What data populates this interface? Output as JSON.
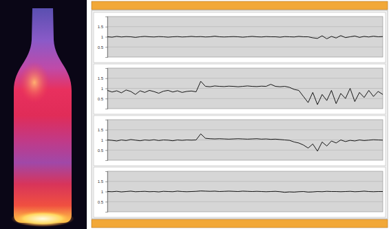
{
  "chart_data": [
    {
      "type": "line",
      "color": "#000000",
      "grid": true,
      "tick_labels": "y",
      "xlim": [
        0,
        59
      ],
      "ylim": [
        0,
        2
      ],
      "yticks": [
        0.5,
        1,
        1.5
      ],
      "x": [
        0,
        1,
        2,
        3,
        4,
        5,
        6,
        7,
        8,
        9,
        10,
        11,
        12,
        13,
        14,
        15,
        16,
        17,
        18,
        19,
        20,
        21,
        22,
        23,
        24,
        25,
        26,
        27,
        28,
        29,
        30,
        31,
        32,
        33,
        34,
        35,
        36,
        37,
        38,
        39,
        40,
        41,
        42,
        43,
        44,
        45,
        46,
        47,
        48,
        49,
        50,
        51,
        52,
        53,
        54,
        55,
        56,
        57,
        58,
        59
      ],
      "values": [
        1.0,
        0.98,
        1.02,
        0.99,
        1.01,
        1.0,
        0.97,
        1.0,
        1.02,
        1.0,
        0.99,
        1.01,
        1.0,
        0.98,
        1.0,
        1.01,
        0.99,
        1.0,
        1.02,
        1.0,
        1.01,
        0.99,
        1.0,
        1.03,
        1.0,
        0.99,
        1.0,
        1.01,
        1.0,
        0.98,
        1.0,
        1.02,
        1.0,
        0.99,
        1.01,
        1.0,
        1.0,
        0.98,
        1.01,
        1.0,
        0.99,
        1.02,
        1.0,
        1.0,
        0.95,
        0.92,
        1.05,
        0.9,
        1.02,
        0.94,
        1.06,
        0.96,
        1.0,
        1.04,
        0.97,
        1.02,
        0.99,
        1.03,
        1.0,
        1.01
      ]
    },
    {
      "type": "line",
      "color": "#000000",
      "grid": true,
      "tick_labels": "y",
      "xlim": [
        0,
        59
      ],
      "ylim": [
        0,
        2
      ],
      "yticks": [
        0.5,
        1,
        1.5
      ],
      "x": [
        0,
        1,
        2,
        3,
        4,
        5,
        6,
        7,
        8,
        9,
        10,
        11,
        12,
        13,
        14,
        15,
        16,
        17,
        18,
        19,
        20,
        21,
        22,
        23,
        24,
        25,
        26,
        27,
        28,
        29,
        30,
        31,
        32,
        33,
        34,
        35,
        36,
        37,
        38,
        39,
        40,
        41,
        42,
        43,
        44,
        45,
        46,
        47,
        48,
        49,
        50,
        51,
        52,
        53,
        54,
        55,
        56,
        57,
        58,
        59
      ],
      "values": [
        0.9,
        0.82,
        0.88,
        0.78,
        0.92,
        0.85,
        0.7,
        0.88,
        0.8,
        0.9,
        0.84,
        0.76,
        0.86,
        0.9,
        0.82,
        0.88,
        0.8,
        0.85,
        0.87,
        0.83,
        1.35,
        1.1,
        1.08,
        1.12,
        1.1,
        1.09,
        1.11,
        1.1,
        1.08,
        1.1,
        1.12,
        1.1,
        1.09,
        1.11,
        1.1,
        1.2,
        1.1,
        1.08,
        1.1,
        1.05,
        0.95,
        0.9,
        0.6,
        0.3,
        0.8,
        0.2,
        0.7,
        0.4,
        0.9,
        0.25,
        0.75,
        0.5,
        1.0,
        0.35,
        0.8,
        0.55,
        0.9,
        0.6,
        0.85,
        0.7
      ]
    },
    {
      "type": "line",
      "color": "#000000",
      "grid": true,
      "tick_labels": "y",
      "xlim": [
        0,
        59
      ],
      "ylim": [
        0,
        2
      ],
      "yticks": [
        0.5,
        1,
        1.5
      ],
      "x": [
        0,
        1,
        2,
        3,
        4,
        5,
        6,
        7,
        8,
        9,
        10,
        11,
        12,
        13,
        14,
        15,
        16,
        17,
        18,
        19,
        20,
        21,
        22,
        23,
        24,
        25,
        26,
        27,
        28,
        29,
        30,
        31,
        32,
        33,
        34,
        35,
        36,
        37,
        38,
        39,
        40,
        41,
        42,
        43,
        44,
        45,
        46,
        47,
        48,
        49,
        50,
        51,
        52,
        53,
        54,
        55,
        56,
        57,
        58,
        59
      ],
      "values": [
        1.0,
        0.98,
        0.95,
        1.0,
        0.97,
        1.02,
        0.99,
        0.96,
        1.0,
        0.98,
        1.01,
        0.97,
        1.0,
        0.99,
        0.96,
        1.0,
        0.98,
        1.0,
        0.99,
        1.0,
        1.3,
        1.08,
        1.06,
        1.05,
        1.06,
        1.05,
        1.04,
        1.05,
        1.06,
        1.05,
        1.04,
        1.05,
        1.06,
        1.04,
        1.05,
        1.03,
        1.04,
        1.02,
        1.0,
        0.98,
        0.9,
        0.85,
        0.75,
        0.6,
        0.8,
        0.45,
        0.9,
        0.7,
        0.95,
        0.85,
        1.0,
        0.92,
        0.98,
        0.95,
        1.0,
        0.97,
        0.99,
        1.01,
        1.0,
        0.99
      ]
    },
    {
      "type": "line",
      "color": "#000000",
      "grid": true,
      "tick_labels": "y",
      "xlim": [
        0,
        59
      ],
      "ylim": [
        0,
        2
      ],
      "yticks": [
        0.5,
        1,
        1.5
      ],
      "x": [
        0,
        1,
        2,
        3,
        4,
        5,
        6,
        7,
        8,
        9,
        10,
        11,
        12,
        13,
        14,
        15,
        16,
        17,
        18,
        19,
        20,
        21,
        22,
        23,
        24,
        25,
        26,
        27,
        28,
        29,
        30,
        31,
        32,
        33,
        34,
        35,
        36,
        37,
        38,
        39,
        40,
        41,
        42,
        43,
        44,
        45,
        46,
        47,
        48,
        49,
        50,
        51,
        52,
        53,
        54,
        55,
        56,
        57,
        58,
        59
      ],
      "values": [
        1.0,
        0.99,
        1.01,
        0.98,
        1.0,
        1.02,
        0.99,
        1.0,
        1.01,
        0.99,
        1.0,
        0.98,
        1.01,
        1.0,
        0.99,
        1.02,
        1.0,
        0.99,
        1.0,
        1.01,
        1.03,
        1.02,
        1.01,
        1.02,
        1.0,
        1.01,
        1.02,
        1.01,
        1.0,
        1.02,
        1.01,
        1.0,
        1.01,
        1.0,
        0.99,
        1.0,
        1.01,
        0.99,
        0.96,
        0.98,
        0.97,
        0.99,
        1.0,
        0.97,
        0.98,
        1.0,
        0.99,
        1.01,
        1.0,
        1.0,
        0.99,
        1.0,
        1.01,
        0.99,
        1.0,
        1.02,
        1.0,
        0.99,
        1.0,
        1.0
      ]
    }
  ]
}
